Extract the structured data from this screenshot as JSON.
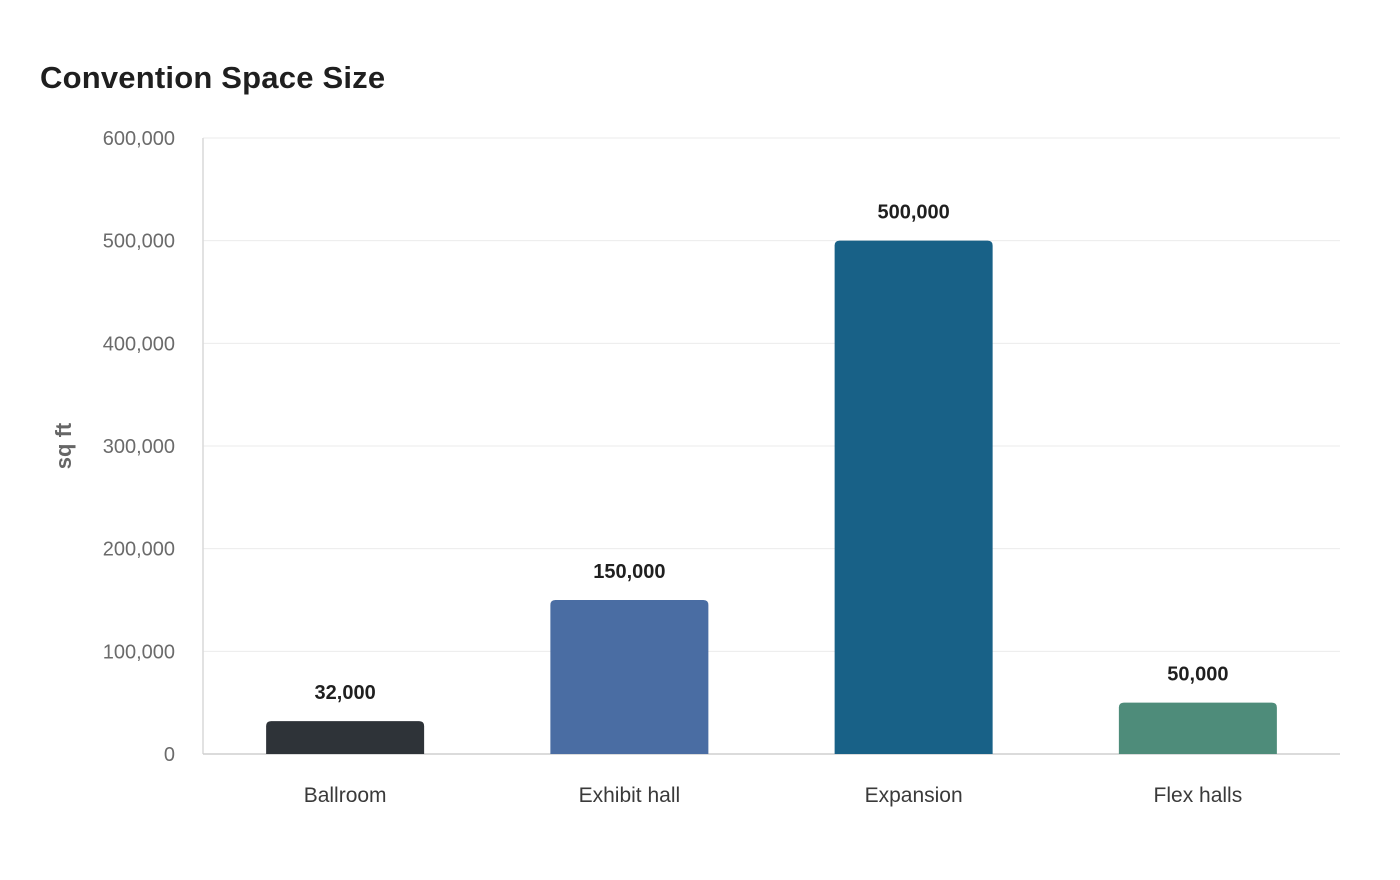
{
  "chart_data": {
    "type": "bar",
    "title": "Convention Space Size",
    "xlabel": "",
    "ylabel": "sq ft",
    "categories": [
      "Ballroom",
      "Exhibit hall",
      "Expansion",
      "Flex halls"
    ],
    "values": [
      32000,
      150000,
      500000,
      50000
    ],
    "data_labels": [
      "32,000",
      "150,000",
      "500,000",
      "50,000"
    ],
    "colors": [
      "#2e3338",
      "#4a6da3",
      "#186187",
      "#4e8c7a"
    ],
    "ylim": [
      0,
      600000
    ],
    "yticks": [
      0,
      100000,
      200000,
      300000,
      400000,
      500000,
      600000
    ],
    "ytick_labels": [
      "0",
      "100,000",
      "200,000",
      "300,000",
      "400,000",
      "500,000",
      "600,000"
    ],
    "grid": true,
    "legend": "none"
  }
}
